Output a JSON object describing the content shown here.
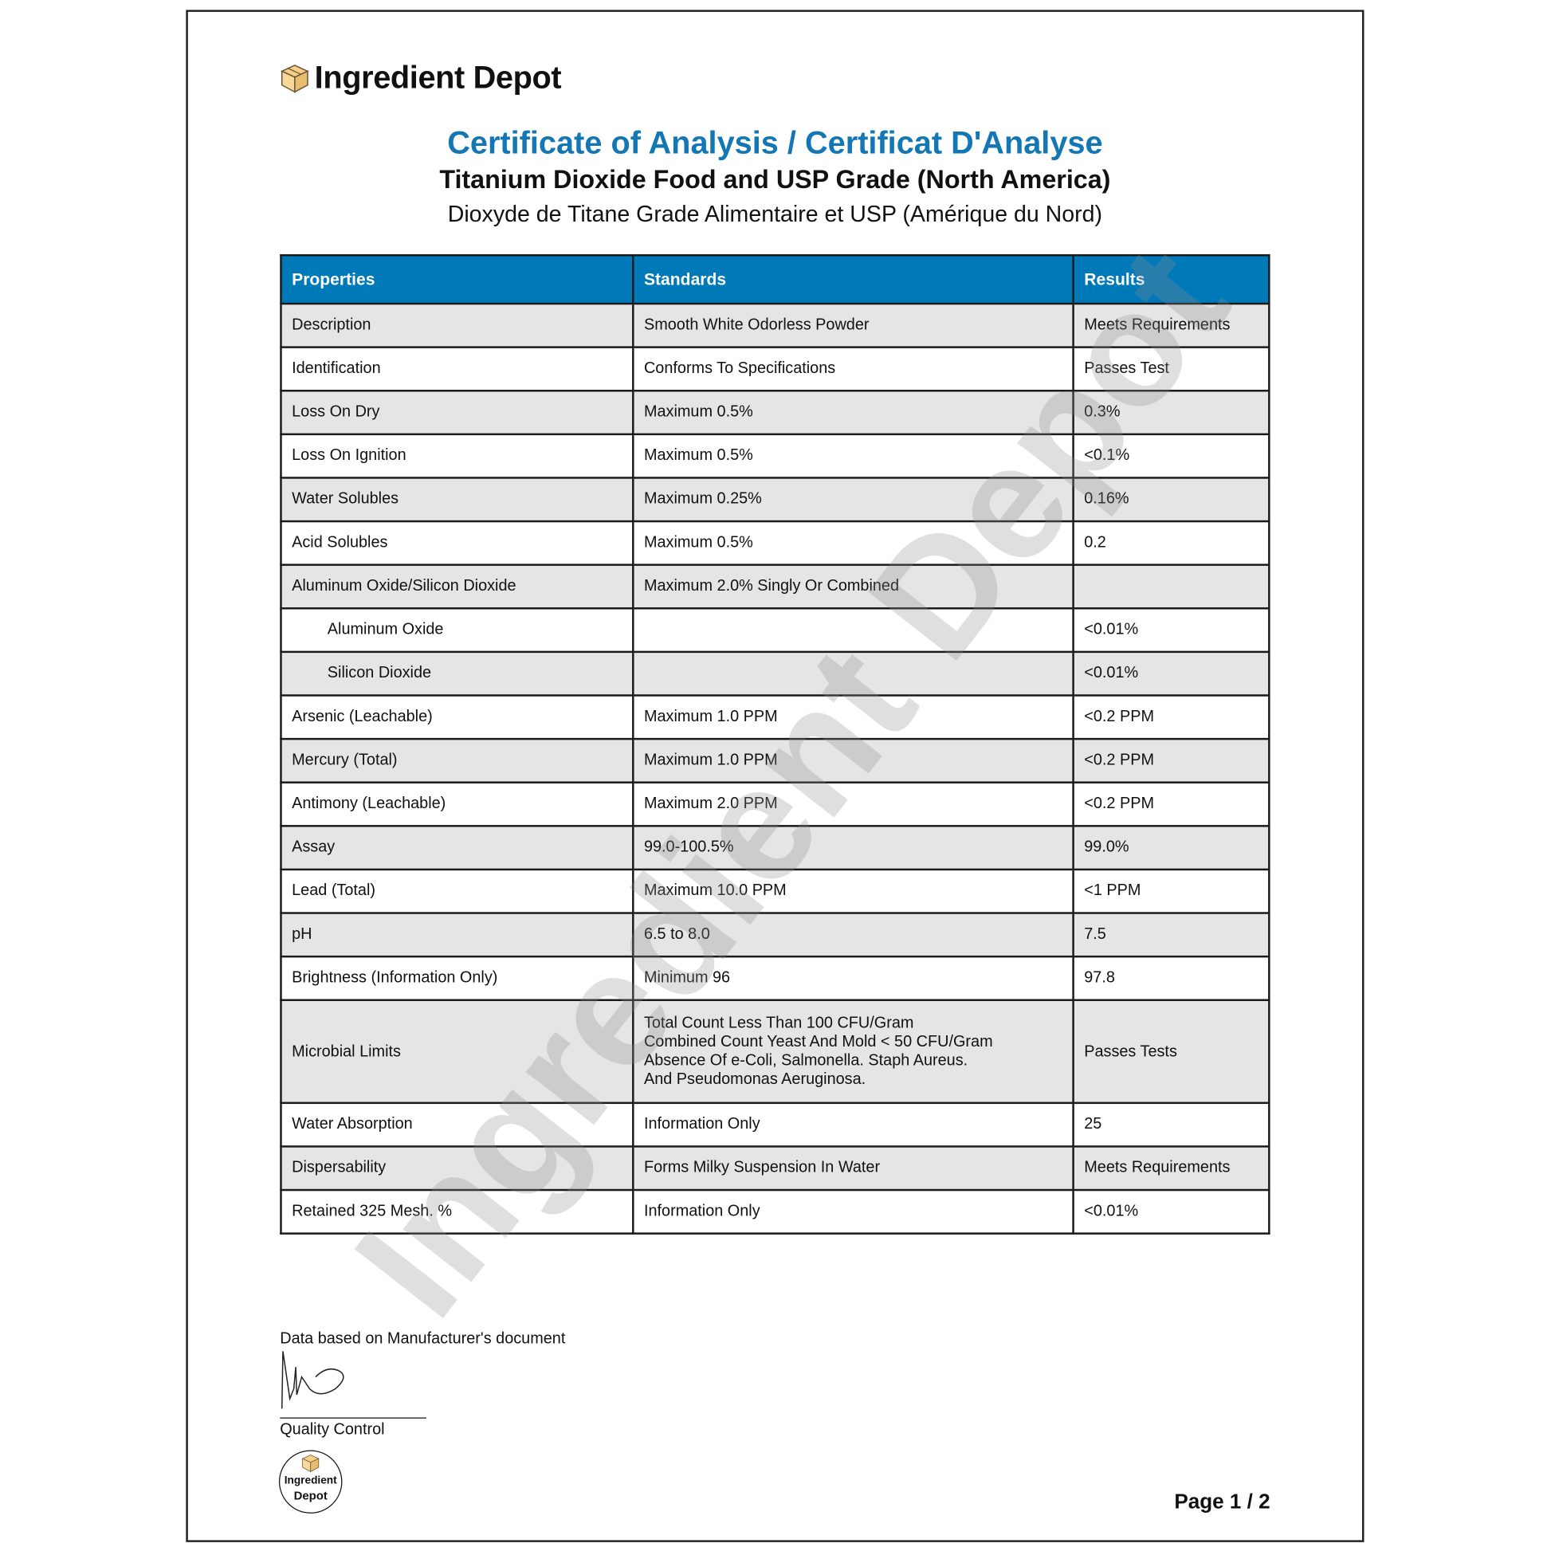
{
  "brand": {
    "name": "Ingredient Depot",
    "seal_line1": "Ingredient",
    "seal_line2": "Depot",
    "watermark": "Ingredient Depot"
  },
  "header": {
    "title": "Certificate of Analysis / Certificat D'Analyse",
    "product_en": "Titanium Dioxide Food and USP Grade (North America)",
    "product_fr": "Dioxyde de Titane Grade Alimentaire et USP (Amérique du Nord)",
    "accent_color": "#0079b8"
  },
  "table": {
    "columns": [
      "Properties",
      "Standards",
      "Results"
    ],
    "rows": [
      [
        "Description",
        "Smooth White Odorless Powder",
        "Meets Requirements"
      ],
      [
        "Identification",
        "Conforms To Specifications",
        "Passes Test"
      ],
      [
        "Loss On Dry",
        "Maximum 0.5%",
        "0.3%"
      ],
      [
        "Loss On Ignition",
        "Maximum 0.5%",
        "<0.1%"
      ],
      [
        "Water Solubles",
        "Maximum 0.25%",
        "0.16%"
      ],
      [
        "Acid Solubles",
        "Maximum 0.5%",
        "0.2"
      ],
      [
        "Aluminum Oxide/Silicon Dioxide",
        "Maximum 2.0% Singly Or Combined",
        ""
      ],
      [
        "Aluminum Oxide",
        "",
        "<0.01%"
      ],
      [
        "Silicon Dioxide",
        "",
        "<0.01%"
      ],
      [
        "Arsenic (Leachable)",
        "Maximum 1.0 PPM",
        "<0.2 PPM"
      ],
      [
        "Mercury (Total)",
        "Maximum 1.0 PPM",
        "<0.2 PPM"
      ],
      [
        "Antimony (Leachable)",
        "Maximum 2.0 PPM",
        "<0.2 PPM"
      ],
      [
        "Assay",
        "99.0-100.5%",
        "99.0%"
      ],
      [
        "Lead (Total)",
        "Maximum 10.0 PPM",
        "<1 PPM"
      ],
      [
        "pH",
        "6.5 to 8.0",
        "7.5"
      ],
      [
        "Brightness (Information Only)",
        "Minimum 96",
        "97.8"
      ],
      [
        "Microbial Limits",
        "Total Count Less Than 100 CFU/Gram\nCombined Count Yeast And Mold < 50 CFU/Gram\nAbsence Of e-Coli, Salmonella. Staph Aureus.\nAnd Pseudomonas Aeruginosa.",
        "Passes Tests"
      ],
      [
        "Water Absorption",
        "Information Only",
        "25"
      ],
      [
        "Dispersability",
        "Forms Milky Suspension In Water",
        "Meets Requirements"
      ],
      [
        "Retained 325 Mesh. %",
        "Information Only",
        "<0.01%"
      ]
    ]
  },
  "footer": {
    "note": "Data based on Manufacturer's document",
    "signature_role": "Quality Control",
    "page": "Page 1 / 2"
  }
}
